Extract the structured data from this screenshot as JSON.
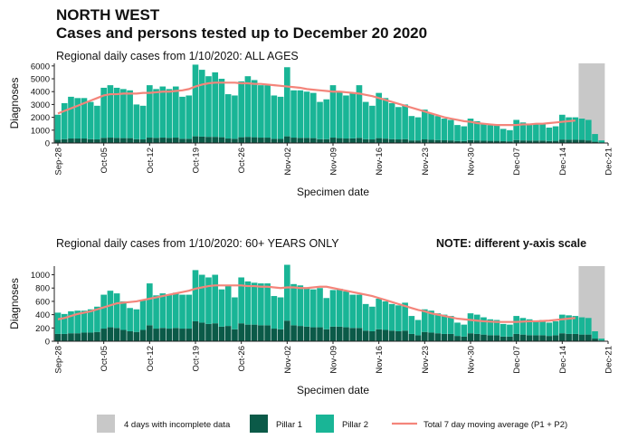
{
  "title": "NORTH WEST",
  "subtitle": "Cases and persons tested up to December 20 2020",
  "chart_data": [
    {
      "type": "bar",
      "stacked": true,
      "title": "Regional daily cases from 1/10/2020: ALL AGES",
      "xlabel": "Specimen date",
      "ylabel": "Diagnoses",
      "categories": [
        "Sep-28",
        null,
        null,
        null,
        null,
        null,
        null,
        "Oct-05",
        null,
        null,
        null,
        null,
        null,
        null,
        "Oct-12",
        null,
        null,
        null,
        null,
        null,
        null,
        "Oct-19",
        null,
        null,
        null,
        null,
        null,
        null,
        "Oct-26",
        null,
        null,
        null,
        null,
        null,
        null,
        "Nov-02",
        null,
        null,
        null,
        null,
        null,
        null,
        "Nov-09",
        null,
        null,
        null,
        null,
        null,
        null,
        "Nov-16",
        null,
        null,
        null,
        null,
        null,
        null,
        "Nov-23",
        null,
        null,
        null,
        null,
        null,
        null,
        "Nov-30",
        null,
        null,
        null,
        null,
        null,
        null,
        "Dec-07",
        null,
        null,
        null,
        null,
        null,
        null,
        "Dec-14",
        null,
        null,
        null,
        null,
        null,
        null,
        "Dec-21"
      ],
      "ylim": [
        0,
        6200
      ],
      "yticks": [
        0,
        1000,
        2000,
        3000,
        4000,
        5000,
        6000
      ],
      "grid": false,
      "highlight": {
        "name": "4 days with incomplete data",
        "color": "#c8c8c8",
        "from": 80,
        "to": 83
      },
      "series": [
        {
          "name": "Pillar 1",
          "color": "#0b5a48",
          "values": [
            250,
            300,
            350,
            350,
            350,
            300,
            280,
            400,
            420,
            400,
            380,
            380,
            300,
            280,
            420,
            400,
            420,
            400,
            420,
            330,
            330,
            520,
            500,
            480,
            480,
            450,
            350,
            330,
            450,
            480,
            450,
            420,
            420,
            330,
            320,
            520,
            420,
            400,
            400,
            380,
            300,
            300,
            420,
            380,
            350,
            360,
            400,
            300,
            280,
            380,
            340,
            300,
            280,
            300,
            200,
            200,
            280,
            250,
            230,
            210,
            200,
            160,
            150,
            220,
            200,
            180,
            170,
            170,
            140,
            130,
            230,
            200,
            190,
            190,
            190,
            160,
            170,
            270,
            260,
            250,
            240,
            200,
            100,
            30,
            null
          ]
        },
        {
          "name": "Pillar 2",
          "color": "#19b596",
          "values": [
            1950,
            2800,
            3250,
            3150,
            3150,
            2900,
            2620,
            3900,
            4080,
            3900,
            3820,
            3720,
            2700,
            2620,
            4080,
            3800,
            3980,
            3800,
            3980,
            3270,
            3370,
            5580,
            5200,
            4720,
            5020,
            4550,
            3450,
            3370,
            4350,
            4720,
            4450,
            4080,
            4080,
            3370,
            3280,
            5380,
            3680,
            3700,
            3600,
            3520,
            2900,
            3100,
            4080,
            3620,
            3350,
            3540,
            4100,
            2900,
            2620,
            3520,
            3160,
            2800,
            2520,
            2700,
            1900,
            1800,
            2320,
            2050,
            1870,
            1690,
            1600,
            1240,
            1150,
            1680,
            1500,
            1320,
            1230,
            1230,
            960,
            870,
            1570,
            1400,
            1310,
            1310,
            1310,
            1040,
            1130,
            1930,
            1740,
            1750,
            1660,
            1600,
            600,
            170,
            null
          ]
        },
        {
          "name": "Total 7 day moving average (P1 + P2)",
          "type": "line",
          "color": "#f4857b",
          "values": [
            2300,
            2500,
            2700,
            2900,
            3100,
            3300,
            3500,
            3700,
            3800,
            3800,
            3850,
            3850,
            3850,
            3900,
            3900,
            3950,
            4000,
            4000,
            4050,
            4100,
            4200,
            4400,
            4550,
            4650,
            4700,
            4700,
            4700,
            4700,
            4650,
            4650,
            4600,
            4600,
            4550,
            4500,
            4450,
            4400,
            4350,
            4300,
            4200,
            4150,
            4100,
            4050,
            4000,
            4000,
            3950,
            3900,
            3850,
            3750,
            3650,
            3500,
            3350,
            3200,
            3050,
            2900,
            2750,
            2600,
            2450,
            2300,
            2150,
            2000,
            1900,
            1800,
            1700,
            1650,
            1550,
            1500,
            1450,
            1400,
            1400,
            1400,
            1400,
            1450,
            1450,
            1500,
            1500,
            1550,
            1600,
            1650,
            1700,
            1750,
            null,
            null,
            null,
            null,
            null
          ]
        }
      ]
    },
    {
      "type": "bar",
      "stacked": true,
      "title": "Regional daily cases from 1/10/2020: 60+ YEARS ONLY",
      "note": "NOTE: different y-axis scale",
      "xlabel": "Specimen date",
      "ylabel": "Diagnoses",
      "categories": [
        "Sep-28",
        null,
        null,
        null,
        null,
        null,
        null,
        "Oct-05",
        null,
        null,
        null,
        null,
        null,
        null,
        "Oct-12",
        null,
        null,
        null,
        null,
        null,
        null,
        "Oct-19",
        null,
        null,
        null,
        null,
        null,
        null,
        "Oct-26",
        null,
        null,
        null,
        null,
        null,
        null,
        "Nov-02",
        null,
        null,
        null,
        null,
        null,
        null,
        "Nov-09",
        null,
        null,
        null,
        null,
        null,
        null,
        "Nov-16",
        null,
        null,
        null,
        null,
        null,
        null,
        "Nov-23",
        null,
        null,
        null,
        null,
        null,
        null,
        "Nov-30",
        null,
        null,
        null,
        null,
        null,
        null,
        "Dec-07",
        null,
        null,
        null,
        null,
        null,
        null,
        "Dec-14",
        null,
        null,
        null,
        null,
        null,
        null,
        "Dec-21"
      ],
      "ylim": [
        0,
        1130
      ],
      "yticks": [
        0,
        200,
        400,
        600,
        800,
        1000
      ],
      "grid": false,
      "highlight": {
        "color": "#c8c8c8",
        "from": 80,
        "to": 83
      },
      "series": [
        {
          "color": "#0b5a48",
          "values": [
            110,
            110,
            120,
            120,
            130,
            130,
            140,
            190,
            210,
            200,
            170,
            150,
            140,
            170,
            240,
            190,
            200,
            190,
            200,
            190,
            190,
            300,
            280,
            260,
            270,
            220,
            230,
            180,
            270,
            250,
            250,
            240,
            240,
            190,
            180,
            310,
            240,
            230,
            220,
            210,
            210,
            180,
            220,
            220,
            210,
            200,
            200,
            160,
            150,
            180,
            170,
            160,
            150,
            160,
            110,
            90,
            140,
            130,
            120,
            110,
            110,
            80,
            70,
            120,
            110,
            100,
            90,
            90,
            70,
            70,
            110,
            100,
            90,
            90,
            90,
            80,
            90,
            120,
            110,
            110,
            100,
            100,
            40,
            10,
            null
          ]
        },
        {
          "color": "#19b596",
          "values": [
            320,
            300,
            330,
            340,
            330,
            350,
            380,
            510,
            550,
            520,
            430,
            350,
            340,
            450,
            630,
            500,
            520,
            510,
            530,
            510,
            510,
            770,
            720,
            700,
            730,
            560,
            620,
            480,
            690,
            650,
            630,
            630,
            630,
            490,
            480,
            840,
            620,
            610,
            580,
            570,
            590,
            470,
            550,
            570,
            540,
            500,
            500,
            400,
            370,
            460,
            430,
            400,
            390,
            420,
            270,
            230,
            340,
            330,
            300,
            290,
            270,
            200,
            180,
            300,
            290,
            260,
            240,
            230,
            190,
            180,
            270,
            250,
            240,
            210,
            230,
            200,
            210,
            280,
            280,
            270,
            260,
            250,
            110,
            30,
            null
          ]
        },
        {
          "type": "line",
          "color": "#f4857b",
          "values": [
            330,
            350,
            380,
            410,
            430,
            450,
            480,
            510,
            540,
            570,
            580,
            590,
            600,
            620,
            640,
            660,
            680,
            700,
            720,
            740,
            760,
            790,
            810,
            830,
            840,
            840,
            840,
            840,
            840,
            830,
            830,
            820,
            820,
            810,
            800,
            810,
            810,
            800,
            800,
            810,
            820,
            820,
            800,
            780,
            760,
            740,
            720,
            700,
            680,
            650,
            620,
            590,
            560,
            530,
            500,
            470,
            450,
            420,
            400,
            380,
            360,
            340,
            330,
            320,
            310,
            300,
            295,
            290,
            290,
            290,
            290,
            295,
            300,
            300,
            305,
            310,
            320,
            330,
            340,
            350,
            null,
            null,
            null,
            null,
            null
          ]
        }
      ]
    }
  ]
}
